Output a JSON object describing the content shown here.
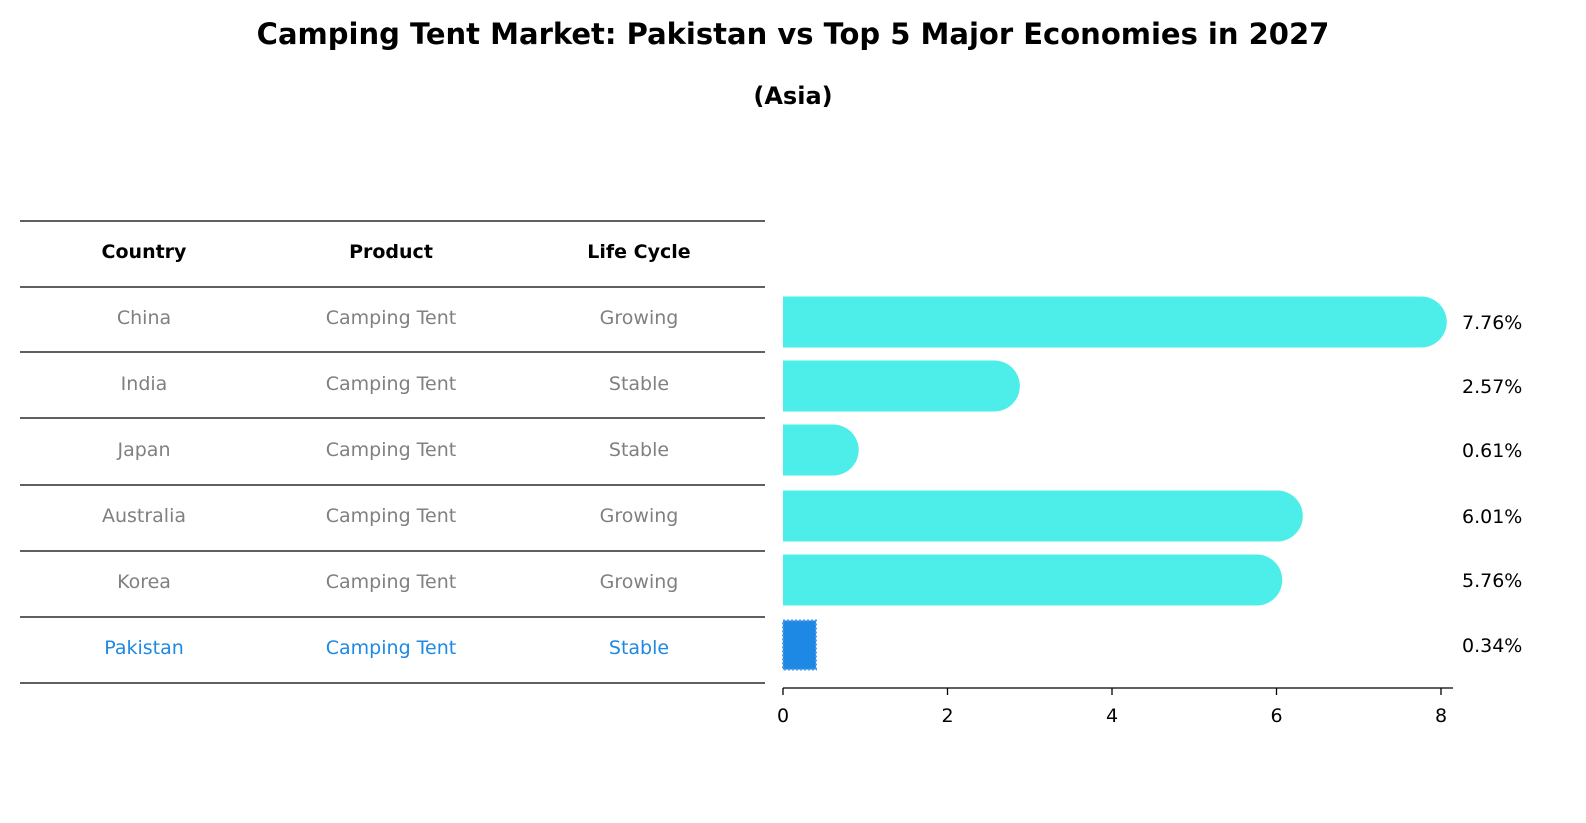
{
  "chart_data": {
    "type": "bar",
    "orientation": "horizontal",
    "title": "Camping Tent Market: Pakistan vs Top 5 Major Economies in 2027",
    "subtitle": "(Asia)",
    "table": {
      "columns": [
        "Country",
        "Product",
        "Life Cycle"
      ],
      "rows": [
        [
          "China",
          "Camping Tent",
          "Growing"
        ],
        [
          "India",
          "Camping Tent",
          "Stable"
        ],
        [
          "Japan",
          "Camping Tent",
          "Stable"
        ],
        [
          "Australia",
          "Camping Tent",
          "Growing"
        ],
        [
          "Korea",
          "Camping Tent",
          "Growing"
        ],
        [
          "Pakistan",
          "Camping Tent",
          "Stable"
        ]
      ]
    },
    "categories": [
      "China",
      "India",
      "Japan",
      "Australia",
      "Korea",
      "Pakistan"
    ],
    "values": [
      7.76,
      2.57,
      0.61,
      6.01,
      5.76,
      0.34
    ],
    "value_labels": [
      "7.76%",
      "2.57%",
      "0.61%",
      "6.01%",
      "5.76%",
      "0.34%"
    ],
    "highlight": "Pakistan",
    "xlim": [
      0,
      8
    ],
    "xticks": [
      0,
      2,
      4,
      6,
      8
    ],
    "xtick_labels": [
      "0",
      "2",
      "4",
      "6",
      "8"
    ],
    "colors": {
      "bar": "#4deeea",
      "highlight_bar": "#1e88e5",
      "text_muted": "#808080",
      "highlight_text": "#1e88e5"
    }
  }
}
